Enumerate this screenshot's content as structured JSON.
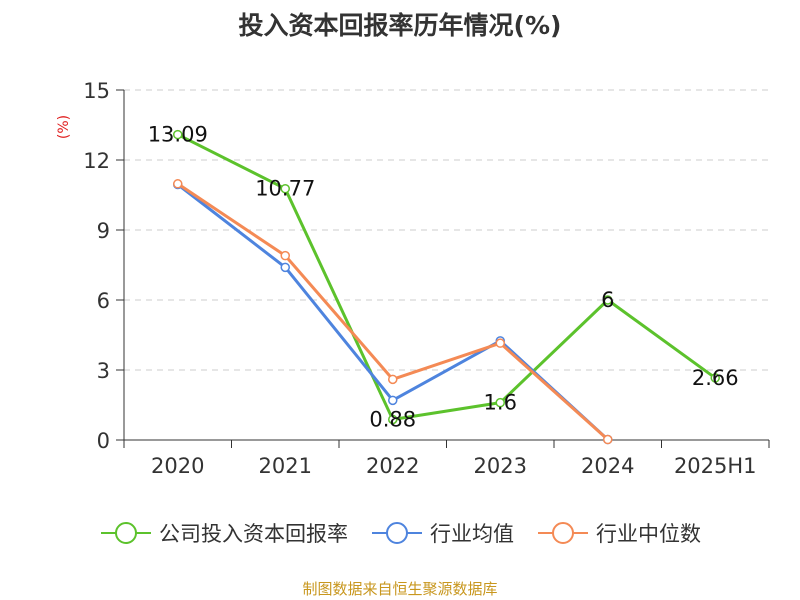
{
  "chart_data": {
    "type": "line",
    "title": "投入资本回报率历年情况(%)",
    "ylabel": "(%)",
    "xlabel": "",
    "categories": [
      "2020",
      "2021",
      "2022",
      "2023",
      "2024",
      "2025H1"
    ],
    "ylim": [
      0,
      15
    ],
    "yticks": [
      0,
      3,
      6,
      9,
      12,
      15
    ],
    "grid": true,
    "legend_position": "bottom",
    "series": [
      {
        "name": "公司投入资本回报率",
        "color": "#5cc22c",
        "values": [
          13.09,
          10.77,
          0.88,
          1.6,
          6,
          2.66
        ],
        "labels": [
          "13.09",
          "10.77",
          "0.88",
          "1.6",
          "6",
          "2.66"
        ]
      },
      {
        "name": "行业均值",
        "color": "#4e84de",
        "values": [
          10.95,
          7.4,
          1.7,
          4.25,
          0.02,
          null
        ]
      },
      {
        "name": "行业中位数",
        "color": "#f48a55",
        "values": [
          10.98,
          7.9,
          2.6,
          4.15,
          0.02,
          null
        ]
      }
    ]
  },
  "footer": {
    "source": "制图数据来自恒生聚源数据库"
  }
}
